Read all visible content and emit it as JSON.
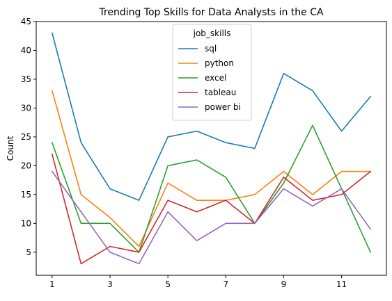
{
  "chart_data": {
    "type": "line",
    "title": "Trending Top Skills for Data Analysts in the CA",
    "xlabel": "",
    "ylabel": "Count",
    "x": [
      1,
      2,
      3,
      4,
      5,
      6,
      7,
      8,
      9,
      10,
      11,
      12
    ],
    "xticks": [
      1,
      3,
      5,
      7,
      9,
      11
    ],
    "yticks": [
      5,
      10,
      15,
      20,
      25,
      30,
      35,
      40,
      45
    ],
    "xlim": [
      0.45,
      12.55
    ],
    "ylim": [
      1,
      45
    ],
    "grid": false,
    "legend": {
      "title": "job_skills",
      "placement": "upper-center"
    },
    "series": [
      {
        "name": "sql",
        "color": "#1f77b4",
        "values": [
          43,
          24,
          16,
          14,
          25,
          26,
          24,
          23,
          36,
          33,
          26,
          32
        ]
      },
      {
        "name": "python",
        "color": "#ff7f0e",
        "values": [
          33,
          15,
          11,
          6,
          17,
          14,
          14,
          15,
          19,
          15,
          19,
          19
        ]
      },
      {
        "name": "excel",
        "color": "#2ca02c",
        "values": [
          24,
          10,
          10,
          5,
          20,
          21,
          18,
          10,
          17,
          27,
          16,
          5
        ]
      },
      {
        "name": "tableau",
        "color": "#d62728",
        "values": [
          22,
          3,
          6,
          5,
          14,
          12,
          14,
          10,
          18,
          14,
          15,
          19
        ]
      },
      {
        "name": "power bi",
        "color": "#9467bd",
        "values": [
          19,
          12,
          5,
          3,
          12,
          7,
          10,
          10,
          16,
          13,
          16,
          9
        ]
      }
    ]
  }
}
